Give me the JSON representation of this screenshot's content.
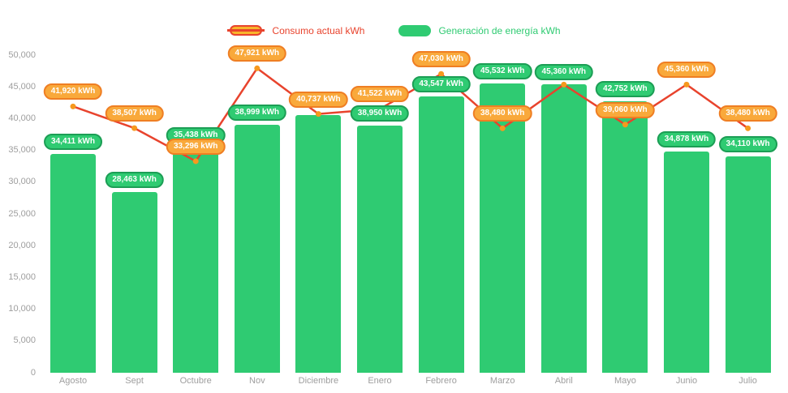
{
  "colors": {
    "bar_green": "#2FCB72",
    "green_pill_border": "#1C9E55",
    "orange_pill_fill": "#F9A93B",
    "orange_pill_border": "#EF7E23",
    "line_red": "#E8432D",
    "point_orange": "#F6991E",
    "axis_text": "#9E9E9E",
    "legend_consumo_swatch_fill": "#F8B52C"
  },
  "chart_data": {
    "type": "bar+line",
    "title": "",
    "categories": [
      "Agosto",
      "Sept",
      "Octubre",
      "Nov",
      "Diciembre",
      "Enero",
      "Febrero",
      "Marzo",
      "Abril",
      "Mayo",
      "Junio",
      "Julio"
    ],
    "series": [
      {
        "name": "Generación de energía kWh",
        "type": "bar",
        "color_key": "bar_green",
        "values": [
          34411,
          28463,
          35438,
          38999,
          40600,
          38950,
          43547,
          45532,
          45360,
          42752,
          34878,
          34110
        ],
        "labels_visible": [
          true,
          true,
          true,
          true,
          false,
          true,
          true,
          true,
          true,
          true,
          true,
          true
        ]
      },
      {
        "name": "Consumo actual kWh",
        "type": "line",
        "color_key": "line_red",
        "values": [
          41920,
          38507,
          33296,
          47921,
          40737,
          41522,
          47030,
          38480,
          45360,
          39060,
          45360,
          38480
        ],
        "labels_visible": [
          true,
          true,
          true,
          true,
          true,
          true,
          true,
          true,
          false,
          true,
          true,
          true
        ]
      }
    ],
    "value_suffix": " kWh",
    "ylim": [
      0,
      50000
    ],
    "ytick_step": 5000,
    "ytick_labels": [
      "0",
      "5,000",
      "10,000",
      "15,000",
      "20,000",
      "25,000",
      "30,000",
      "35,000",
      "40,000",
      "45,000",
      "50,000"
    ],
    "grid": false,
    "legend_position": "top-center"
  }
}
